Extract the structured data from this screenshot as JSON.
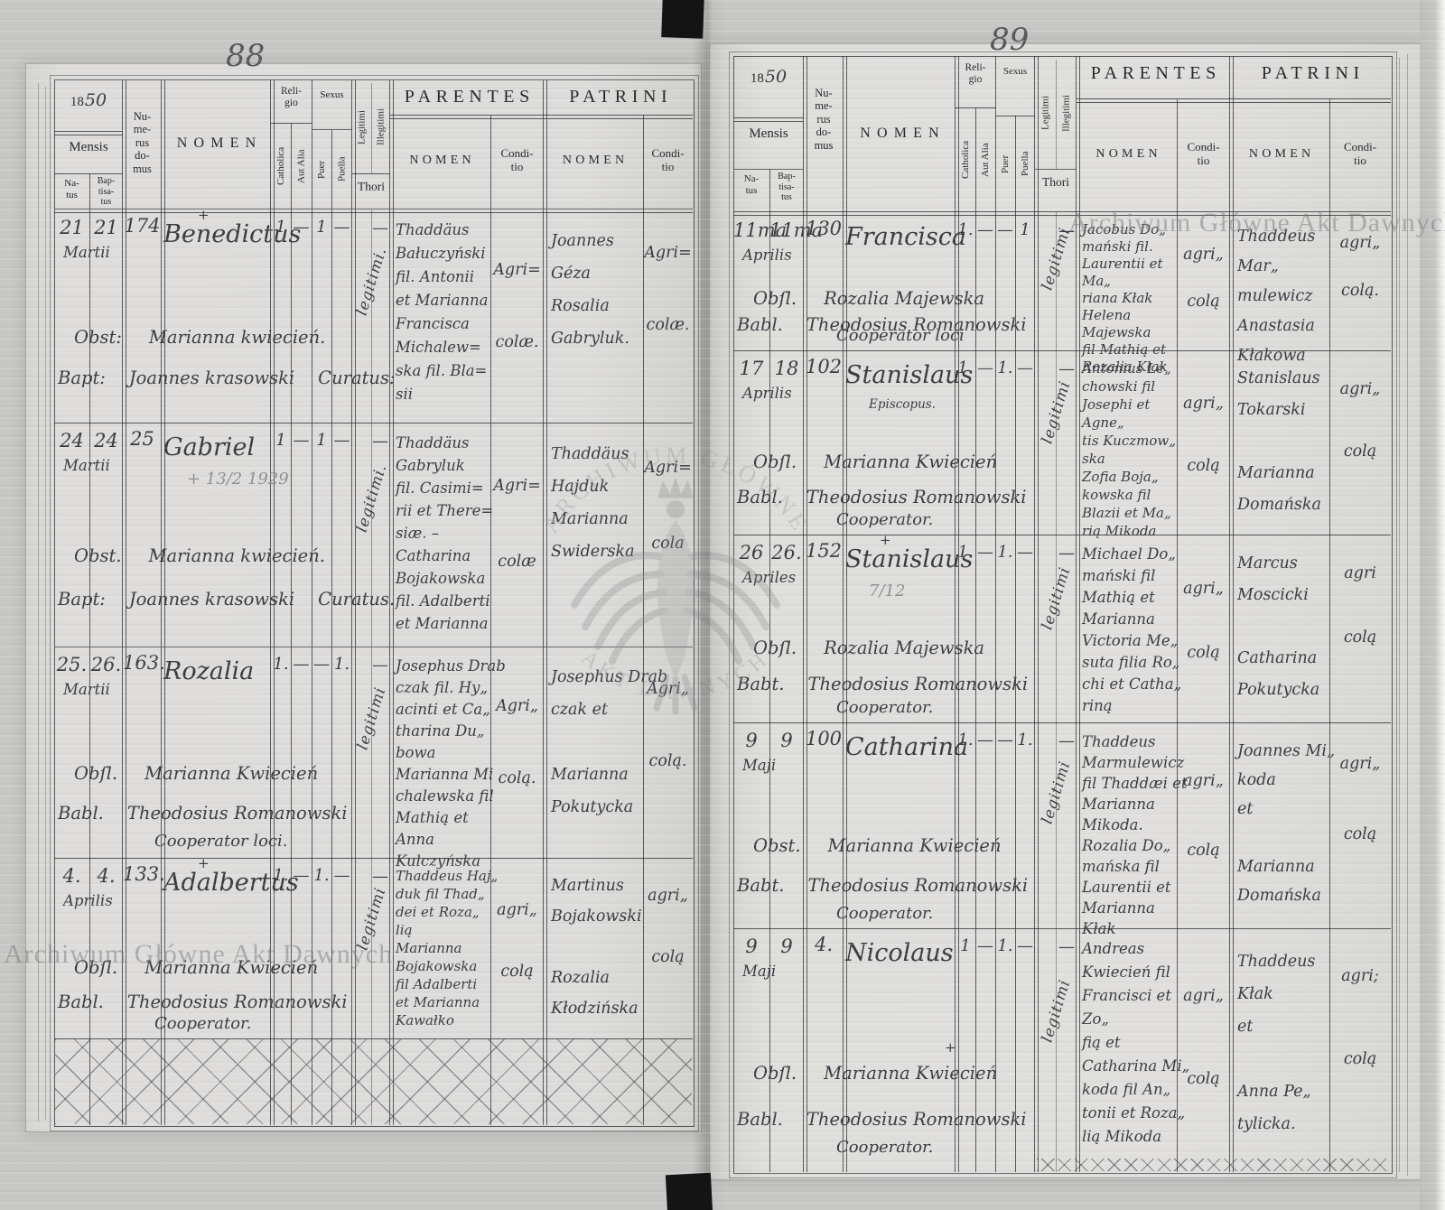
{
  "watermark": {
    "emblem_top": "ARCHIWUM GŁÓWNE",
    "emblem_bottom": "AKT DAWNYCH",
    "line_text": "Archiwum Główne Akt Dawnych"
  },
  "column_headers": {
    "year_print": "18",
    "year_script": "50",
    "mensis": "Mensis",
    "natus": "Na-\ntus",
    "baptisatus": "Bap-\ntisa-\ntus",
    "numerus_domus": "Nu-\nme-\nrus\ndo-\nmus",
    "nomen": "NOMEN",
    "religio": "Reli-\ngio",
    "catholica": "Catholica",
    "aut_alia": "Aut Alia",
    "sexus": "Sexus",
    "puer": "Puer",
    "puella": "Puella",
    "legitimi": "Legitimi",
    "illegitimi": "Illegitimi",
    "thori": "Thori",
    "parentes": "PARENTES",
    "patrini": "PATRINI",
    "nomen_sub": "NOMEN",
    "conditio": "Condi-\ntio"
  },
  "pages": [
    {
      "page_number": "88",
      "entries": [
        {
          "natus": "21",
          "baptisatus": "21",
          "month": "Martii",
          "house": "174",
          "name": "Benedictus",
          "name_cross": "+",
          "name_note": "",
          "note_faint": false,
          "marks": {
            "catholica": "1",
            "aut_alia": "—",
            "puer": "1",
            "puella": "—",
            "thori": "—"
          },
          "legitimi": "legitimi.",
          "obstetrix_label": "Obst:",
          "obstetrix": "Marianna kwiecień.",
          "obstetrix_cross": "",
          "baptizans_label": "Bapt:",
          "baptizans": "Joannes krasowski",
          "baptizans_title": "Curatus:",
          "title_inline": true,
          "parentes_nomen": [
            "Thaddäus",
            "Bałuczyński",
            "fil. Antonii",
            "et Marianna",
            "Francisca",
            "Michalew=",
            "ska fil. Bla=",
            "sii"
          ],
          "parentes_conditio": [
            "Agri=",
            "colæ."
          ],
          "patrini_nomen": [
            "Joannes",
            "Géza",
            "Rosalia",
            "Gabryluk."
          ],
          "patrini_conditio": [
            "Agri=",
            "colæ."
          ]
        },
        {
          "natus": "24",
          "baptisatus": "24",
          "month": "Martii",
          "house": "25",
          "name": "Gabriel",
          "name_cross": "",
          "name_note": "+ 13/2 1929",
          "note_faint": true,
          "marks": {
            "catholica": "1",
            "aut_alia": "—",
            "puer": "1",
            "puella": "—",
            "thori": "—"
          },
          "legitimi": "legitimi.",
          "obstetrix_label": "Obst.",
          "obstetrix": "Marianna kwiecień.",
          "obstetrix_cross": "",
          "baptizans_label": "Bapt:",
          "baptizans": "Joannes krasowski",
          "baptizans_title": "Curatus.",
          "title_inline": true,
          "parentes_nomen": [
            "Thaddäus",
            "Gabryluk",
            "fil. Casimi=",
            "rii et There=",
            "siæ. –",
            "Catharina",
            "Bojakowska",
            "fil. Adalberti",
            "et Marianna"
          ],
          "parentes_conditio": [
            "Agri=",
            "colæ"
          ],
          "patrini_nomen": [
            "Thaddäus",
            "Hajduk",
            "Marianna",
            "Swiderska"
          ],
          "patrini_conditio": [
            "Agri=",
            "cola"
          ]
        },
        {
          "natus": "25.",
          "baptisatus": "26.",
          "month": "Martii",
          "house": "163.",
          "name": "Rozalia",
          "name_cross": "",
          "name_note": "",
          "note_faint": false,
          "marks": {
            "catholica": "1.",
            "aut_alia": "—",
            "puer": "—",
            "puella": "1.",
            "thori": "—"
          },
          "legitimi": "legitimi",
          "obstetrix_label": "Obſl.",
          "obstetrix": "Marianna Kwiecień",
          "obstetrix_cross": "",
          "baptizans_label": "Babl.",
          "baptizans": "Theodosius Romanowski",
          "baptizans_title": "Cooperator loci.",
          "title_inline": false,
          "parentes_nomen": [
            "Josephus Drab",
            "czak fil. Hy„",
            "acinti et Ca„",
            "tharina Du„",
            "bowa",
            "Marianna Mi",
            "chalewska fil",
            "Mathią et Anna",
            "Kulczyńska"
          ],
          "parentes_conditio": [
            "Agri„",
            "colą."
          ],
          "patrini_nomen": [
            "Josephus Drab",
            "czak et",
            "",
            "Marianna",
            "Pokutycka"
          ],
          "patrini_conditio": [
            "Agri„",
            "colą."
          ]
        },
        {
          "natus": "4.",
          "baptisatus": "4.",
          "month": "Aprilis",
          "house": "133.",
          "name": "Adalbertus",
          "name_cross": "+",
          "name_note": "",
          "note_faint": false,
          "marks": {
            "catholica": "1.",
            "aut_alia": "—",
            "puer": "1.",
            "puella": "—",
            "thori": "—"
          },
          "legitimi": "legitimi",
          "obstetrix_label": "Obſl.",
          "obstetrix": "Marianna Kwiecień",
          "obstetrix_cross": "",
          "baptizans_label": "Babl.",
          "baptizans": "Theodosius Romanowski",
          "baptizans_title": "Cooperator.",
          "title_inline": false,
          "parentes_nomen": [
            "Thaddeus Haj„",
            "duk fil Thad„",
            "dei et Roza„",
            "lią",
            "Marianna",
            "Bojakowska",
            "fil Adalberti",
            "et Marianna",
            "Kawałko"
          ],
          "parentes_conditio": [
            "agri„",
            "colą"
          ],
          "patrini_nomen": [
            "Martinus",
            "Bojakowski",
            "",
            "Rozalia",
            "Kłodzińska"
          ],
          "patrini_conditio": [
            "agri„",
            "colą"
          ]
        }
      ]
    },
    {
      "page_number": "89",
      "entries": [
        {
          "natus": "11ma",
          "baptisatus": "11ma",
          "month": "Aprilis",
          "house": "130",
          "name": "Francisca",
          "name_cross": "",
          "name_note": "",
          "note_faint": false,
          "marks": {
            "catholica": "1.",
            "aut_alia": "—",
            "puer": "—",
            "puella": "1",
            "thori": "—"
          },
          "legitimi": "legitimi",
          "obstetrix_label": "Obſl.",
          "obstetrix": "Rozalia Majewska",
          "obstetrix_cross": "",
          "baptizans_label": "Babl.",
          "baptizans": "Theodosius Romanowski",
          "baptizans_title": "Cooperator loci",
          "title_inline": false,
          "parentes_nomen": [
            "Jacobus Do„",
            "mański fil.",
            "Laurentii et Ma„",
            "riana Kłak",
            "Helena Majewska",
            "fil Mathią et",
            "Rozalia Kłak"
          ],
          "parentes_conditio": [
            "agri„",
            "colą"
          ],
          "patrini_nomen": [
            "Thaddeus Mar„",
            "mulewicz",
            "Anastasia",
            "Kłakowa"
          ],
          "patrini_conditio": [
            "agri„",
            "colą."
          ]
        },
        {
          "natus": "17",
          "baptisatus": "18",
          "month": "Aprilis",
          "house": "102",
          "name": "Stanislaus",
          "name_cross": "",
          "name_note": "Episcopus.",
          "note_faint": false,
          "marks": {
            "catholica": "1.",
            "aut_alia": "—",
            "puer": "1.",
            "puella": "—",
            "thori": "—"
          },
          "legitimi": "legitimi",
          "obstetrix_label": "Obſl.",
          "obstetrix": "Marianna Kwiecień",
          "obstetrix_cross": "",
          "baptizans_label": "Babl.",
          "baptizans": "Theodosius Romanowski",
          "baptizans_title": "Cooperator.",
          "title_inline": false,
          "parentes_nomen": [
            "Antonius Le„",
            "chowski fil",
            "Josephi et Agne„",
            "tis Kuczmow„",
            "ska",
            "Zofia Boja„",
            "kowska fil",
            "Blazii et Ma„",
            "rią Mikoda"
          ],
          "parentes_conditio": [
            "agri„",
            "colą"
          ],
          "patrini_nomen": [
            "Stanislaus",
            "Tokarski",
            "",
            "Marianna",
            "Domańska"
          ],
          "patrini_conditio": [
            "agri„",
            "colą"
          ]
        },
        {
          "natus": "26",
          "baptisatus": "26.",
          "month": "Apriles",
          "house": "152",
          "name": "Stanislaus",
          "name_cross": "+",
          "name_note": "7/12",
          "note_faint": true,
          "marks": {
            "catholica": "1.",
            "aut_alia": "—",
            "puer": "1.",
            "puella": "—",
            "thori": "—"
          },
          "legitimi": "legitimi",
          "obstetrix_label": "Obſl.",
          "obstetrix": "Rozalia Majewska",
          "obstetrix_cross": "",
          "baptizans_label": "Babt.",
          "baptizans": "Theodosius Romanowski",
          "baptizans_title": "Cooperator.",
          "title_inline": false,
          "parentes_nomen": [
            "Michael Do„",
            "mański fil",
            "Mathią et",
            "Marianna",
            "Victoria Me„",
            "suta filia Ro„",
            "chi et Catha„",
            "riną"
          ],
          "parentes_conditio": [
            "agri„",
            "colą"
          ],
          "patrini_nomen": [
            "Marcus",
            "Moscicki",
            "",
            "Catharina",
            "Pokutycka"
          ],
          "patrini_conditio": [
            "agri",
            "colą"
          ]
        },
        {
          "natus": "9",
          "baptisatus": "9",
          "month": "Maji",
          "house": "100",
          "name": "Catharina",
          "name_cross": "",
          "name_note": "",
          "note_faint": false,
          "marks": {
            "catholica": "1.",
            "aut_alia": "—",
            "puer": "—",
            "puella": "1.",
            "thori": "—"
          },
          "legitimi": "legitimi",
          "obstetrix_label": "Obst.",
          "obstetrix": "Marianna Kwiecień",
          "obstetrix_cross": "",
          "baptizans_label": "Babt.",
          "baptizans": "Theodosius Romanowski",
          "baptizans_title": "Cooperator.",
          "title_inline": false,
          "parentes_nomen": [
            "Thaddeus",
            "Marmulewicz",
            "fil Thaddæi et",
            "Marianna",
            "Mikoda.",
            "Rozalia Do„",
            "mańska fil",
            "Laurentii et",
            "Marianna Kłak"
          ],
          "parentes_conditio": [
            "agri„",
            "colą"
          ],
          "patrini_nomen": [
            "Joannes Mi„",
            "koda",
            "et",
            "",
            "Marianna",
            "Domańska"
          ],
          "patrini_conditio": [
            "agri„",
            "colą"
          ]
        },
        {
          "natus": "9",
          "baptisatus": "9",
          "month": "Maji",
          "house": "4.",
          "name": "Nicolaus",
          "name_cross": "",
          "name_note": "",
          "note_faint": false,
          "marks": {
            "catholica": "1",
            "aut_alia": "—",
            "puer": "1.",
            "puella": "—",
            "thori": "—"
          },
          "legitimi": "legitimi",
          "obstetrix_label": "Obſl.",
          "obstetrix": "Marianna Kwiecień",
          "obstetrix_cross": "+",
          "baptizans_label": "Babl.",
          "baptizans": "Theodosius Romanowski",
          "baptizans_title": "Cooperator.",
          "title_inline": false,
          "parentes_nomen": [
            "Andreas",
            "Kwiecień fil",
            "Francisci et Zo„",
            "fią et",
            "Catharina Mi„",
            "koda fil An„",
            "tonii et Roza„",
            "lią Mikoda"
          ],
          "parentes_conditio": [
            "agri„",
            "colą"
          ],
          "patrini_nomen": [
            "Thaddeus Kłak",
            "et",
            "",
            "Anna Pe„",
            "tylicka."
          ],
          "patrini_conditio": [
            "agri;",
            "colą"
          ]
        }
      ]
    }
  ]
}
